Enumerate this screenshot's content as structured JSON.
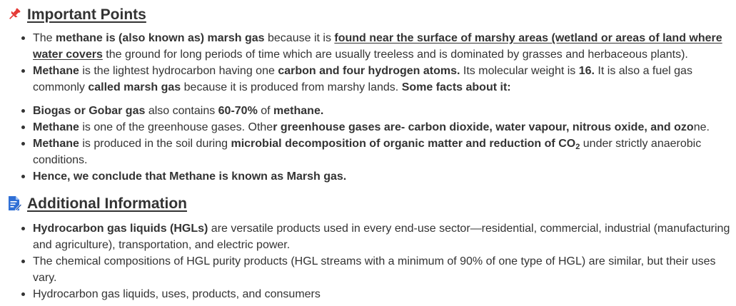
{
  "important": {
    "title": "Important Points",
    "icon": "pushpin-icon",
    "icon_color": "#e53935"
  },
  "list1": {
    "item1": {
      "t1": "The ",
      "b1": "methane is (also known as) marsh gas",
      "t2": " because it is ",
      "u1": "found near the surface of marshy areas (wetland or areas of land where water covers",
      "t3": " the ground for long periods of time which are usually treeless and is dominated by grasses and herbaceous plants)."
    },
    "item2": {
      "b1": "Methane",
      "t1": " is the lightest hydrocarbon having one ",
      "b2": "carbon and four hydrogen atoms.",
      "t2": " Its molecular weight is ",
      "b3": "16.",
      "t3": " It is also a fuel gas commonly ",
      "b4": "called marsh gas",
      "t4": " because it is produced from marshy lands. ",
      "b5": "Some facts about it:"
    }
  },
  "list2": {
    "item1": {
      "b1": "Biogas or Gobar gas",
      "t1": " also contains ",
      "b2": "60-70%",
      "t2": " of ",
      "b3": "methane."
    },
    "item2": {
      "b1": "Methane",
      "t1": " is one of the greenhouse gases. Othe",
      "b2": "r greenhouse gases are- carbon dioxide, water vapour, nitrous oxide, and ozo",
      "t2": "ne."
    },
    "item3": {
      "b1": "Methane",
      "t1": " is produced in the soil during ",
      "b2": "microbial decomposition of organic matter and reduction of CO",
      "sub": "2",
      "t2": " under strictly anaerobic conditions."
    },
    "item4": {
      "b1": "Hence, we conclude that Methane is known as Marsh gas."
    }
  },
  "additional": {
    "title": "Additional Information",
    "icon": "document-edit-icon",
    "icon_color": "#2f6fd6"
  },
  "list3": {
    "item1": {
      "b1": "Hydrocarbon gas liquids (HGLs)",
      "t1": " are versatile products used in every end-use sector—residential, commercial, industrial (manufacturing and agriculture), transportation, and electric power."
    },
    "item2": {
      "t1": "The chemical compositions of HGL purity products (HGL streams with a minimum of 90% of one type of HGL) are similar, but their uses vary."
    },
    "item3": {
      "t1": "Hydrocarbon gas liquids, uses, products, and consumers"
    }
  }
}
